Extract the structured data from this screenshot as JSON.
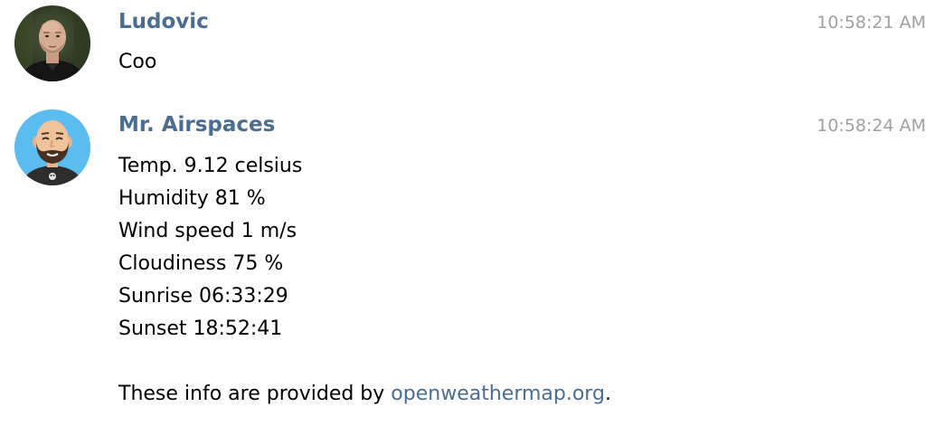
{
  "messages": [
    {
      "sender": "Ludovic",
      "time": "10:58:21 AM",
      "avatar_icon": "user-photo-avatar",
      "lines": [
        "Coo"
      ]
    },
    {
      "sender": "Mr. Airspaces",
      "time": "10:58:24 AM",
      "avatar_icon": "bot-cartoon-avatar",
      "lines": [
        "Temp. 9.12 celsius",
        "Humidity 81 %",
        "Wind speed 1 m/s",
        "Cloudiness 75 %",
        "Sunrise 06:33:29",
        "Sunset 18:52:41"
      ],
      "footer_prefix": "These info are provided by ",
      "footer_link": "openweathermap.org",
      "footer_suffix": "."
    }
  ],
  "colors": {
    "sender_name": "#4a6d91",
    "link": "#4a6d91",
    "timestamp": "#a0a0a0",
    "bot_avatar_bg": "#5bbcf0"
  }
}
